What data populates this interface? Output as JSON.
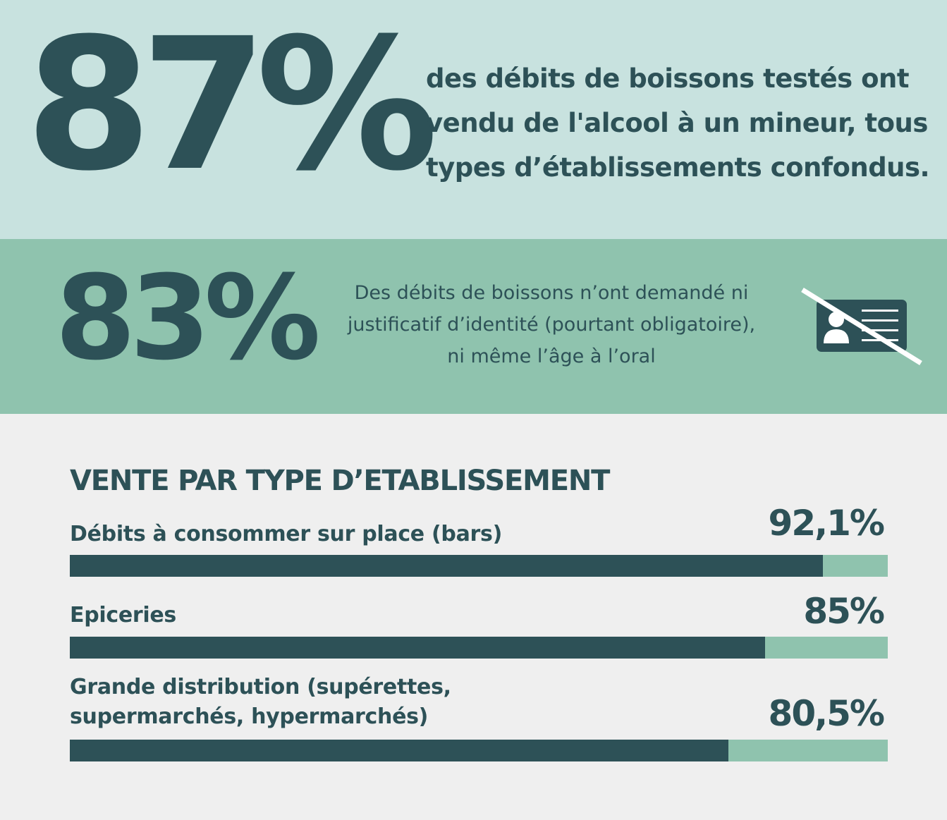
{
  "header": {
    "stat": "87%",
    "text": "des débits de boissons testés ont vendu de l'alcool à un mineur, tous types d’établissements confondus."
  },
  "id_check": {
    "stat": "83%",
    "text_lines": [
      "Des débits de boissons n’ont demandé ni",
      "justificatif d’identité (pourtant obligatoire),",
      "ni même l’âge à l’oral"
    ],
    "icon": "crossed-out-id-card-icon"
  },
  "colors": {
    "dark": "#2d5157",
    "light_teal": "#c8e2df",
    "mint": "#8fc3ae",
    "background": "#efefef"
  },
  "chart_data": {
    "type": "bar",
    "orientation": "horizontal",
    "title": "VENTE PAR TYPE D’ETABLISSEMENT",
    "categories": [
      "Débits à consommer sur place (bars)",
      "Epiceries",
      "Grande distribution (supérettes, supermarchés, hypermarchés)"
    ],
    "values": [
      92.1,
      85,
      80.5
    ],
    "value_labels": [
      "92,1%",
      "85%",
      "80,5%"
    ],
    "xlim": [
      0,
      100
    ],
    "unit": "%",
    "grid": false,
    "legend": "none"
  }
}
